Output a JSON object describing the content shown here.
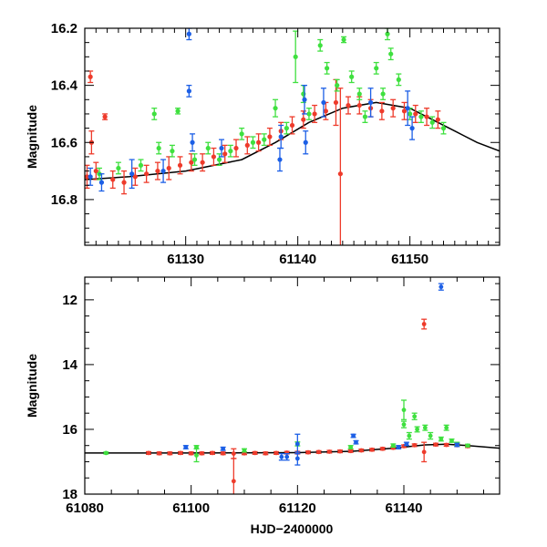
{
  "colors": {
    "red": "#ee3b2b",
    "green": "#3fe03f",
    "blue": "#1c5fe6",
    "model": "#000000"
  },
  "chart_data": [
    {
      "type": "scatter",
      "title": "",
      "xlabel": "",
      "ylabel": "Magnitude",
      "xlim": [
        61121,
        61158
      ],
      "ylim": [
        16.2,
        16.96
      ],
      "y_inverted": true,
      "xticks": [
        61130,
        61140,
        61150
      ],
      "xtick_labels": [
        "61130",
        "61140",
        "61150"
      ],
      "yticks": [
        16.2,
        16.4,
        16.6,
        16.8
      ],
      "ytick_labels": [
        "16.2",
        "16.4",
        "16.6",
        "16.8"
      ],
      "model_curve": {
        "x": [
          61121,
          61125,
          61130,
          61135,
          61138,
          61141,
          61144,
          61147,
          61150,
          61152,
          61154,
          61156,
          61158
        ],
        "y": [
          16.73,
          16.72,
          16.7,
          16.66,
          16.6,
          16.53,
          16.48,
          16.46,
          16.48,
          16.52,
          16.56,
          16.6,
          16.63
        ]
      },
      "series": [
        {
          "name": "red",
          "color_key": "red",
          "points": [
            {
              "x": 61121.2,
              "y": 16.72,
              "err": 0.04
            },
            {
              "x": 61121.5,
              "y": 16.37,
              "err": 0.02
            },
            {
              "x": 61121.6,
              "y": 16.6,
              "err": 0.04
            },
            {
              "x": 61122.0,
              "y": 16.7,
              "err": 0.03
            },
            {
              "x": 61122.8,
              "y": 16.51,
              "err": 0.01
            },
            {
              "x": 61123.5,
              "y": 16.73,
              "err": 0.03
            },
            {
              "x": 61124.5,
              "y": 16.74,
              "err": 0.04
            },
            {
              "x": 61125.5,
              "y": 16.72,
              "err": 0.03
            },
            {
              "x": 61126.5,
              "y": 16.71,
              "err": 0.03
            },
            {
              "x": 61127.5,
              "y": 16.7,
              "err": 0.03
            },
            {
              "x": 61128.5,
              "y": 16.69,
              "err": 0.04
            },
            {
              "x": 61129.5,
              "y": 16.68,
              "err": 0.03
            },
            {
              "x": 61130.5,
              "y": 16.67,
              "err": 0.03
            },
            {
              "x": 61131.5,
              "y": 16.67,
              "err": 0.03
            },
            {
              "x": 61132.5,
              "y": 16.65,
              "err": 0.03
            },
            {
              "x": 61133.5,
              "y": 16.64,
              "err": 0.03
            },
            {
              "x": 61134.5,
              "y": 16.62,
              "err": 0.03
            },
            {
              "x": 61135.5,
              "y": 16.61,
              "err": 0.03
            },
            {
              "x": 61136.5,
              "y": 16.6,
              "err": 0.03
            },
            {
              "x": 61137.5,
              "y": 16.58,
              "err": 0.03
            },
            {
              "x": 61138.5,
              "y": 16.56,
              "err": 0.03
            },
            {
              "x": 61139.5,
              "y": 16.54,
              "err": 0.03
            },
            {
              "x": 61140.5,
              "y": 16.52,
              "err": 0.03
            },
            {
              "x": 61141.5,
              "y": 16.5,
              "err": 0.03
            },
            {
              "x": 61142.5,
              "y": 16.49,
              "err": 0.03
            },
            {
              "x": 61143.4,
              "y": 16.46,
              "err": 0.08
            },
            {
              "x": 61143.8,
              "y": 16.71,
              "err": 0.3
            },
            {
              "x": 61144.5,
              "y": 16.47,
              "err": 0.03
            },
            {
              "x": 61145.5,
              "y": 16.47,
              "err": 0.03
            },
            {
              "x": 61146.5,
              "y": 16.48,
              "err": 0.03
            },
            {
              "x": 61147.5,
              "y": 16.49,
              "err": 0.03
            },
            {
              "x": 61148.5,
              "y": 16.48,
              "err": 0.03
            },
            {
              "x": 61149.5,
              "y": 16.49,
              "err": 0.03
            },
            {
              "x": 61150.5,
              "y": 16.5,
              "err": 0.03
            },
            {
              "x": 61151.5,
              "y": 16.51,
              "err": 0.03
            },
            {
              "x": 61152.5,
              "y": 16.52,
              "err": 0.03
            }
          ]
        },
        {
          "name": "green",
          "color_key": "green",
          "points": [
            {
              "x": 61122.3,
              "y": 16.71,
              "err": 0.02
            },
            {
              "x": 61124.0,
              "y": 16.69,
              "err": 0.02
            },
            {
              "x": 61126.0,
              "y": 16.68,
              "err": 0.02
            },
            {
              "x": 61127.2,
              "y": 16.5,
              "err": 0.02
            },
            {
              "x": 61127.6,
              "y": 16.62,
              "err": 0.02
            },
            {
              "x": 61128.8,
              "y": 16.63,
              "err": 0.02
            },
            {
              "x": 61129.3,
              "y": 16.49,
              "err": 0.01
            },
            {
              "x": 61130.8,
              "y": 16.66,
              "err": 0.02
            },
            {
              "x": 61132.0,
              "y": 16.62,
              "err": 0.02
            },
            {
              "x": 61133.0,
              "y": 16.66,
              "err": 0.02
            },
            {
              "x": 61134.0,
              "y": 16.63,
              "err": 0.02
            },
            {
              "x": 61135.0,
              "y": 16.57,
              "err": 0.02
            },
            {
              "x": 61136.0,
              "y": 16.6,
              "err": 0.02
            },
            {
              "x": 61137.0,
              "y": 16.59,
              "err": 0.02
            },
            {
              "x": 61138.0,
              "y": 16.48,
              "err": 0.03
            },
            {
              "x": 61139.0,
              "y": 16.55,
              "err": 0.02
            },
            {
              "x": 61139.8,
              "y": 16.3,
              "err": 0.09
            },
            {
              "x": 61140.5,
              "y": 16.43,
              "err": 0.03
            },
            {
              "x": 61141.0,
              "y": 16.5,
              "err": 0.02
            },
            {
              "x": 61142.0,
              "y": 16.26,
              "err": 0.02
            },
            {
              "x": 61142.6,
              "y": 16.34,
              "err": 0.02
            },
            {
              "x": 61143.5,
              "y": 16.4,
              "err": 0.02
            },
            {
              "x": 61144.1,
              "y": 16.24,
              "err": 0.01
            },
            {
              "x": 61144.8,
              "y": 16.37,
              "err": 0.02
            },
            {
              "x": 61145.5,
              "y": 16.43,
              "err": 0.02
            },
            {
              "x": 61146.0,
              "y": 16.51,
              "err": 0.02
            },
            {
              "x": 61147.0,
              "y": 16.34,
              "err": 0.02
            },
            {
              "x": 61147.6,
              "y": 16.43,
              "err": 0.02
            },
            {
              "x": 61148.0,
              "y": 16.22,
              "err": 0.02
            },
            {
              "x": 61148.3,
              "y": 16.29,
              "err": 0.02
            },
            {
              "x": 61149.0,
              "y": 16.38,
              "err": 0.02
            },
            {
              "x": 61150.0,
              "y": 16.5,
              "err": 0.02
            },
            {
              "x": 61151.0,
              "y": 16.51,
              "err": 0.02
            },
            {
              "x": 61152.0,
              "y": 16.53,
              "err": 0.02
            },
            {
              "x": 61153.0,
              "y": 16.55,
              "err": 0.02
            }
          ]
        },
        {
          "name": "blue",
          "color_key": "blue",
          "points": [
            {
              "x": 61121.5,
              "y": 16.72,
              "err": 0.03
            },
            {
              "x": 61122.5,
              "y": 16.74,
              "err": 0.03
            },
            {
              "x": 61125.2,
              "y": 16.71,
              "err": 0.05
            },
            {
              "x": 61128.0,
              "y": 16.7,
              "err": 0.04
            },
            {
              "x": 61130.3,
              "y": 16.22,
              "err": 0.02
            },
            {
              "x": 61130.3,
              "y": 16.42,
              "err": 0.02
            },
            {
              "x": 61130.6,
              "y": 16.6,
              "err": 0.03
            },
            {
              "x": 61133.2,
              "y": 16.62,
              "err": 0.03
            },
            {
              "x": 61138.4,
              "y": 16.66,
              "err": 0.04
            },
            {
              "x": 61138.5,
              "y": 16.58,
              "err": 0.04
            },
            {
              "x": 61140.6,
              "y": 16.45,
              "err": 0.05
            },
            {
              "x": 61140.7,
              "y": 16.6,
              "err": 0.04
            },
            {
              "x": 61142.3,
              "y": 16.46,
              "err": 0.05
            },
            {
              "x": 61146.5,
              "y": 16.46,
              "err": 0.05
            },
            {
              "x": 61149.8,
              "y": 16.48,
              "err": 0.06
            },
            {
              "x": 61150.2,
              "y": 16.55,
              "err": 0.04
            }
          ]
        }
      ]
    },
    {
      "type": "scatter",
      "title": "",
      "xlabel": "HJD−2400000",
      "ylabel": "Magnitude",
      "xlim": [
        61080,
        61158
      ],
      "ylim": [
        11.3,
        18
      ],
      "y_inverted": true,
      "xticks": [
        61080,
        61100,
        61120,
        61140
      ],
      "xtick_labels": [
        "61080",
        "61100",
        "61120",
        "61140"
      ],
      "yticks": [
        12,
        14,
        16,
        18
      ],
      "ytick_labels": [
        "12",
        "14",
        "16",
        "18"
      ],
      "model_curve": {
        "x": [
          61080,
          61100,
          61120,
          61130,
          61138,
          61144,
          61148,
          61152,
          61158
        ],
        "y": [
          16.73,
          16.73,
          16.72,
          16.68,
          16.58,
          16.48,
          16.46,
          16.5,
          16.58
        ]
      },
      "series": [
        {
          "name": "red",
          "color_key": "red",
          "points": [
            {
              "x": 61092,
              "y": 16.73,
              "err": 0.04
            },
            {
              "x": 61094,
              "y": 16.74,
              "err": 0.04
            },
            {
              "x": 61096,
              "y": 16.74,
              "err": 0.04
            },
            {
              "x": 61098,
              "y": 16.73,
              "err": 0.04
            },
            {
              "x": 61100,
              "y": 16.74,
              "err": 0.04
            },
            {
              "x": 61102,
              "y": 16.74,
              "err": 0.04
            },
            {
              "x": 61104,
              "y": 16.73,
              "err": 0.04
            },
            {
              "x": 61106,
              "y": 16.74,
              "err": 0.04
            },
            {
              "x": 61108,
              "y": 17.6,
              "err": 0.7
            },
            {
              "x": 61108,
              "y": 16.75,
              "err": 0.15
            },
            {
              "x": 61110,
              "y": 16.74,
              "err": 0.04
            },
            {
              "x": 61112,
              "y": 16.73,
              "err": 0.04
            },
            {
              "x": 61114,
              "y": 16.74,
              "err": 0.04
            },
            {
              "x": 61116,
              "y": 16.73,
              "err": 0.04
            },
            {
              "x": 61118,
              "y": 16.72,
              "err": 0.04
            },
            {
              "x": 61120,
              "y": 16.72,
              "err": 0.04
            },
            {
              "x": 61122,
              "y": 16.71,
              "err": 0.04
            },
            {
              "x": 61124,
              "y": 16.7,
              "err": 0.04
            },
            {
              "x": 61126,
              "y": 16.69,
              "err": 0.04
            },
            {
              "x": 61128,
              "y": 16.68,
              "err": 0.04
            },
            {
              "x": 61130,
              "y": 16.67,
              "err": 0.04
            },
            {
              "x": 61132,
              "y": 16.65,
              "err": 0.04
            },
            {
              "x": 61134,
              "y": 16.63,
              "err": 0.04
            },
            {
              "x": 61136,
              "y": 16.6,
              "err": 0.04
            },
            {
              "x": 61138,
              "y": 16.57,
              "err": 0.04
            },
            {
              "x": 61140,
              "y": 16.52,
              "err": 0.04
            },
            {
              "x": 61142,
              "y": 16.49,
              "err": 0.04
            },
            {
              "x": 61143.8,
              "y": 12.75,
              "err": 0.15
            },
            {
              "x": 61143.8,
              "y": 16.7,
              "err": 0.3
            },
            {
              "x": 61146,
              "y": 16.47,
              "err": 0.04
            },
            {
              "x": 61148,
              "y": 16.48,
              "err": 0.04
            },
            {
              "x": 61150,
              "y": 16.49,
              "err": 0.04
            },
            {
              "x": 61152,
              "y": 16.52,
              "err": 0.04
            }
          ]
        },
        {
          "name": "green",
          "color_key": "green",
          "points": [
            {
              "x": 61084,
              "y": 16.73,
              "err": 0.03
            },
            {
              "x": 61101,
              "y": 16.8,
              "err": 0.2
            },
            {
              "x": 61101,
              "y": 16.55,
              "err": 0.05
            },
            {
              "x": 61110,
              "y": 16.65,
              "err": 0.05
            },
            {
              "x": 61120,
              "y": 16.45,
              "err": 0.06
            },
            {
              "x": 61130,
              "y": 16.55,
              "err": 0.05
            },
            {
              "x": 61138,
              "y": 16.5,
              "err": 0.05
            },
            {
              "x": 61140,
              "y": 15.4,
              "err": 0.3
            },
            {
              "x": 61140,
              "y": 15.85,
              "err": 0.1
            },
            {
              "x": 61141,
              "y": 16.2,
              "err": 0.1
            },
            {
              "x": 61142,
              "y": 15.6,
              "err": 0.1
            },
            {
              "x": 61142.5,
              "y": 16.0,
              "err": 0.08
            },
            {
              "x": 61144,
              "y": 15.95,
              "err": 0.08
            },
            {
              "x": 61145,
              "y": 16.2,
              "err": 0.1
            },
            {
              "x": 61147,
              "y": 16.3,
              "err": 0.06
            },
            {
              "x": 61148,
              "y": 15.95,
              "err": 0.08
            },
            {
              "x": 61149,
              "y": 16.35,
              "err": 0.05
            },
            {
              "x": 61150,
              "y": 16.45,
              "err": 0.05
            },
            {
              "x": 61152,
              "y": 16.5,
              "err": 0.04
            }
          ]
        },
        {
          "name": "blue",
          "color_key": "blue",
          "points": [
            {
              "x": 61099,
              "y": 16.55,
              "err": 0.05
            },
            {
              "x": 61106,
              "y": 16.6,
              "err": 0.05
            },
            {
              "x": 61117,
              "y": 16.85,
              "err": 0.1
            },
            {
              "x": 61118,
              "y": 16.85,
              "err": 0.1
            },
            {
              "x": 61120,
              "y": 16.9,
              "err": 0.2
            },
            {
              "x": 61120,
              "y": 16.45,
              "err": 0.3
            },
            {
              "x": 61130.5,
              "y": 16.2,
              "err": 0.05
            },
            {
              "x": 61131,
              "y": 16.4,
              "err": 0.05
            },
            {
              "x": 61139,
              "y": 16.55,
              "err": 0.05
            },
            {
              "x": 61140.5,
              "y": 16.45,
              "err": 0.05
            },
            {
              "x": 61147,
              "y": 11.6,
              "err": 0.1
            },
            {
              "x": 61150,
              "y": 16.48,
              "err": 0.05
            }
          ]
        }
      ]
    }
  ]
}
